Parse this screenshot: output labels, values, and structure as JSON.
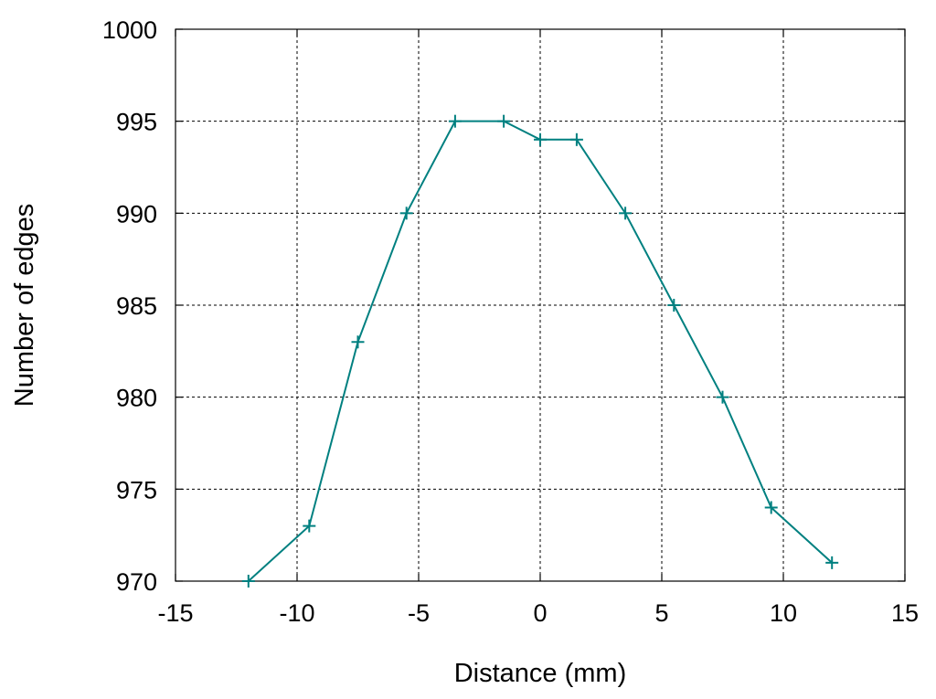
{
  "chart_data": {
    "type": "line",
    "title": "",
    "xlabel": "Distance (mm)",
    "ylabel": "Number of edges",
    "xlim": [
      -15,
      15
    ],
    "ylim": [
      970,
      1000
    ],
    "xticks": [
      "-15",
      "-10",
      "-5",
      "0",
      "5",
      "10",
      "15"
    ],
    "yticks": [
      "970",
      "975",
      "980",
      "985",
      "990",
      "995",
      "1000"
    ],
    "grid": true,
    "legend": "none",
    "marker": "plus",
    "series": [
      {
        "color": "#008080",
        "x": [
          -12,
          -9.5,
          -7.5,
          -5.5,
          -3.5,
          -1.5,
          0,
          1.5,
          3.5,
          5.5,
          7.5,
          9.5,
          12
        ],
        "y": [
          970,
          973,
          983,
          990,
          995,
          995,
          994,
          994,
          990,
          985,
          980,
          974,
          971
        ]
      }
    ]
  }
}
